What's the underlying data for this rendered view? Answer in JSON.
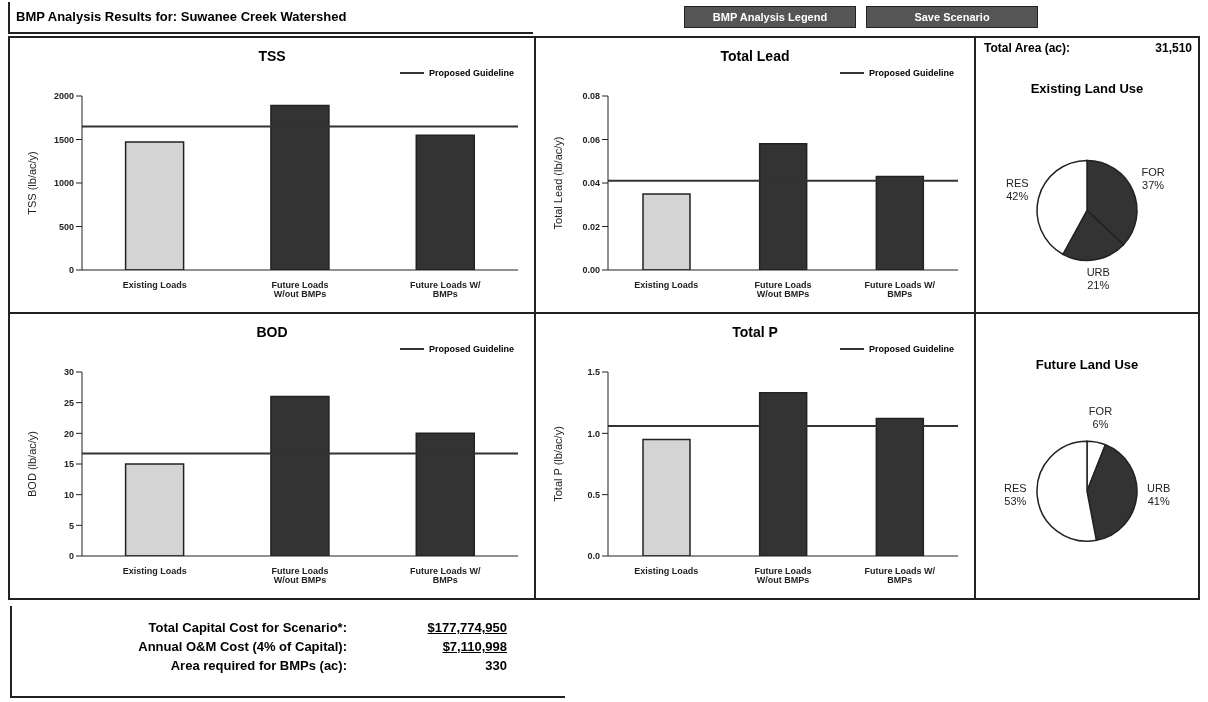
{
  "chart_data": [
    {
      "type": "other",
      "title": "BMP Analysis Results for: Suwanee Creek Watershed",
      "annotations": [
        "BMP Analysis Legend",
        "Save Scenario"
      ]
    },
    {
      "type": "bar",
      "title": "TSS",
      "ylabel": "TSS (lb/ac/y)",
      "categories": [
        "Existing Loads",
        "Future Loads W/out BMPs",
        "Future Loads W/ BMPs"
      ],
      "values": [
        1470,
        1890,
        1550
      ],
      "colors": [
        "#d4d4d4",
        "#333333",
        "#333333"
      ],
      "ylim": [
        0,
        2000
      ],
      "yticks": [
        0,
        500,
        1000,
        1500,
        2000
      ],
      "ref_lines": [
        {
          "axis": "y",
          "value": 1650,
          "label": "Proposed Guideline",
          "color": "#333333"
        }
      ]
    },
    {
      "type": "bar",
      "title": "Total Lead",
      "ylabel": "Total Lead (lb/ac/y)",
      "categories": [
        "Existing Loads",
        "Future Loads W/out BMPs",
        "Future Loads W/ BMPs"
      ],
      "values": [
        0.035,
        0.058,
        0.043
      ],
      "colors": [
        "#d4d4d4",
        "#333333",
        "#333333"
      ],
      "ylim": [
        0,
        0.08
      ],
      "yticks": [
        {
          "value": 0,
          "label": "0.00"
        },
        {
          "value": 0.02,
          "label": "0.02"
        },
        {
          "value": 0.04,
          "label": "0.04"
        },
        {
          "value": 0.06,
          "label": "0.06"
        },
        {
          "value": 0.08,
          "label": "0.08"
        }
      ],
      "ref_lines": [
        {
          "axis": "y",
          "value": 0.041,
          "label": "Proposed Guideline",
          "color": "#333333"
        }
      ]
    },
    {
      "type": "pie",
      "title": "Existing Land Use",
      "annotations": [
        "Total Area (ac):",
        "31,510"
      ],
      "categories": [
        "FOR",
        "URB",
        "RES"
      ],
      "values": [
        37,
        21,
        42
      ],
      "value_labels": [
        "37%",
        "21%",
        "42%"
      ],
      "colors": [
        "#333333",
        "#333333",
        "#ffffff"
      ]
    },
    {
      "type": "bar",
      "title": "BOD",
      "ylabel": "BOD (lb/ac/y)",
      "categories": [
        "Existing Loads",
        "Future Loads W/out BMPs",
        "Future Loads W/ BMPs"
      ],
      "values": [
        15,
        26,
        20
      ],
      "colors": [
        "#d4d4d4",
        "#333333",
        "#333333"
      ],
      "ylim": [
        0,
        30
      ],
      "yticks": [
        0,
        5,
        10,
        15,
        20,
        25,
        30
      ],
      "ref_lines": [
        {
          "axis": "y",
          "value": 16.7,
          "label": "Proposed Guideline",
          "color": "#333333"
        }
      ]
    },
    {
      "type": "bar",
      "title": "Total P",
      "ylabel": "Total P (lb/ac/y)",
      "categories": [
        "Existing Loads",
        "Future Loads W/out BMPs",
        "Future Loads W/ BMPs"
      ],
      "values": [
        0.95,
        1.33,
        1.12
      ],
      "colors": [
        "#d4d4d4",
        "#333333",
        "#333333"
      ],
      "ylim": [
        0,
        1.5
      ],
      "yticks": [
        {
          "value": 0,
          "label": "0.0"
        },
        {
          "value": 0.5,
          "label": "0.5"
        },
        {
          "value": 1,
          "label": "1.0"
        },
        {
          "value": 1.5,
          "label": "1.5"
        }
      ],
      "ref_lines": [
        {
          "axis": "y",
          "value": 1.06,
          "label": "Proposed Guideline",
          "color": "#333333"
        }
      ]
    },
    {
      "type": "pie",
      "title": "Future Land Use",
      "categories": [
        "FOR",
        "URB",
        "RES"
      ],
      "values": [
        6,
        41,
        53
      ],
      "value_labels": [
        "6%",
        "41%",
        "53%"
      ],
      "colors": [
        "#ffffff",
        "#333333",
        "#ffffff"
      ]
    },
    {
      "type": "other",
      "annotations": [
        "Total Capital Cost for Scenario*:",
        "$177,774,950",
        "Annual O&M Cost (4% of Capital):",
        "$7,110,998",
        "Area required for BMPs (ac):",
        "330"
      ]
    }
  ]
}
